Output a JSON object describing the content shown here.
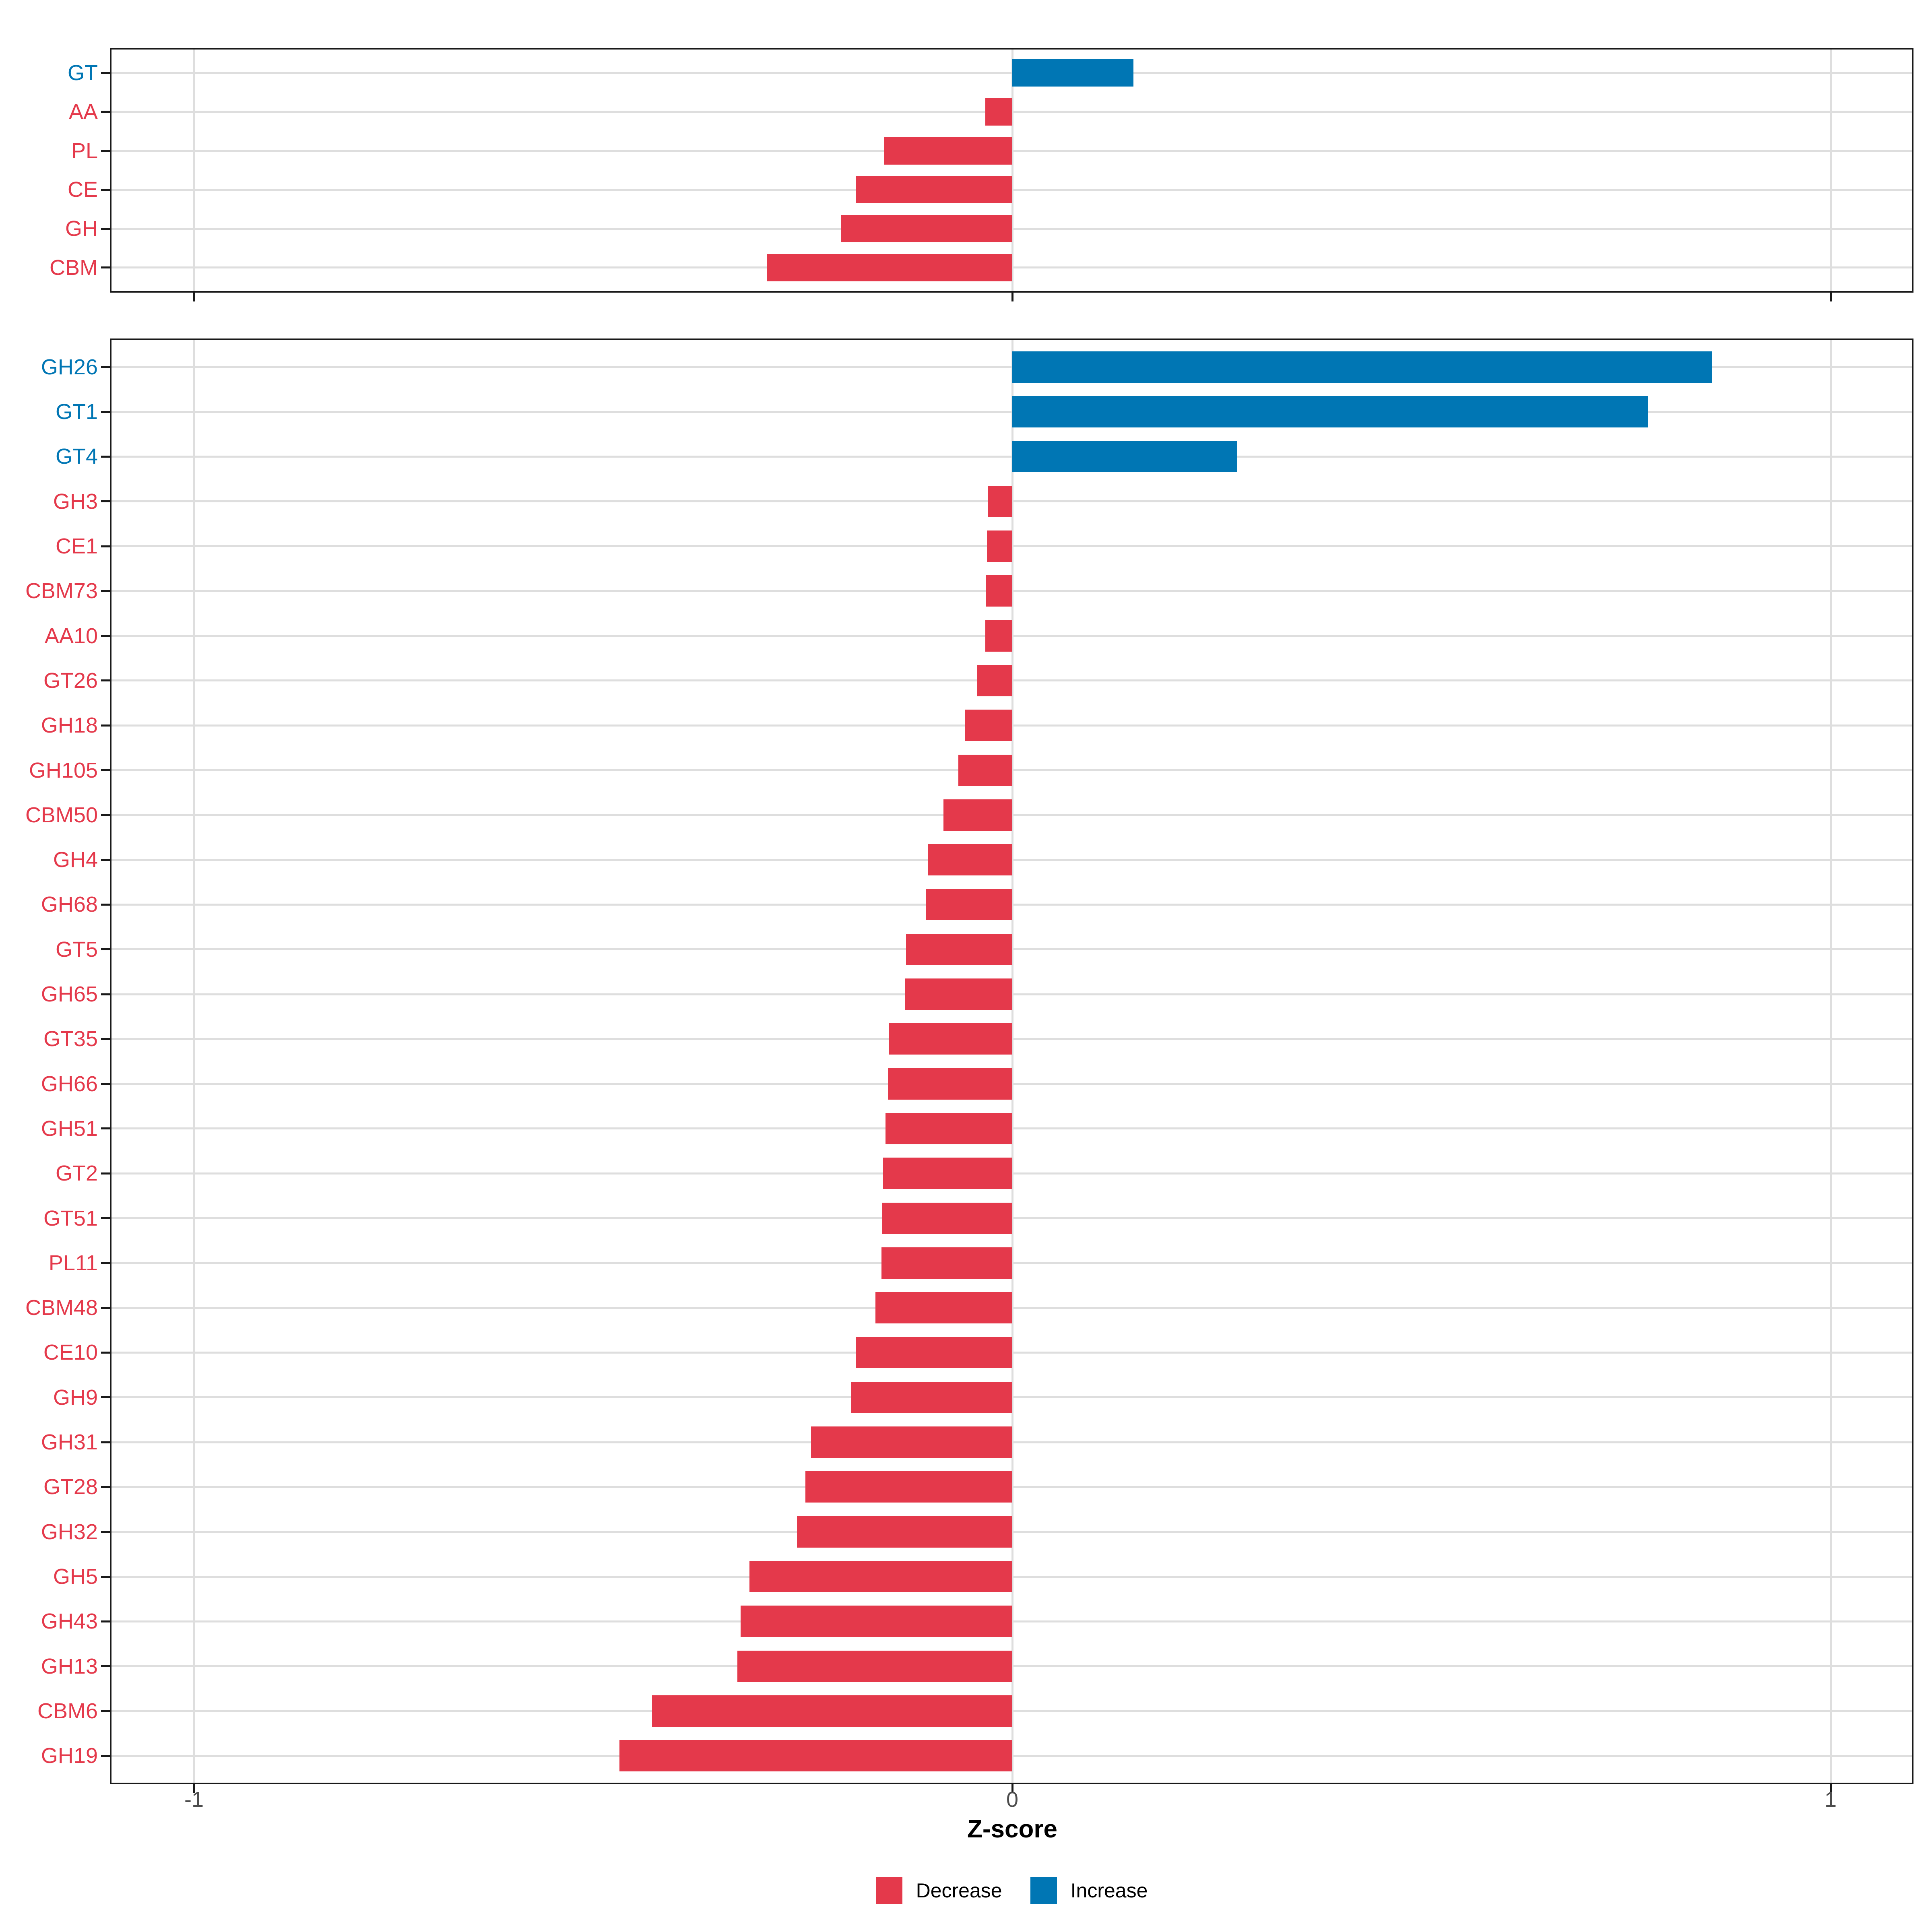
{
  "axis": {
    "title": "Z-score",
    "tick_labels": [
      "-1",
      "0",
      "1"
    ],
    "tick_values": [
      -1,
      0,
      1
    ]
  },
  "legend": {
    "items": [
      {
        "label": "Decrease",
        "color": "#E4394B"
      },
      {
        "label": "Increase",
        "color": "#0076B4"
      }
    ]
  },
  "colors": {
    "decrease": "#E4394B",
    "increase": "#0076B4",
    "grid": "#DEDEDE",
    "axis_text": "#4D4D4D",
    "panel_border": "#1A1A1A",
    "background": "#FFFFFF"
  },
  "chart_data": [
    {
      "type": "bar",
      "orientation": "horizontal",
      "panel": "cazyme-classes",
      "categories": [
        "GT",
        "AA",
        "PL",
        "CE",
        "GH",
        "CBM"
      ],
      "values": [
        0.148,
        -0.033,
        -0.157,
        -0.191,
        -0.209,
        -0.3
      ],
      "xlabel": "Z-score",
      "xlim": [
        -1.1,
        1.1
      ],
      "x_ticks": [
        -1,
        0,
        1
      ],
      "grid": true,
      "legend_position": "bottom"
    },
    {
      "type": "bar",
      "orientation": "horizontal",
      "panel": "cazyme-families",
      "categories": [
        "GH26",
        "GT1",
        "GT4",
        "GH3",
        "CE1",
        "CBM73",
        "AA10",
        "GT26",
        "GH18",
        "GH105",
        "CBM50",
        "GH4",
        "GH68",
        "GT5",
        "GH65",
        "GT35",
        "GH66",
        "GH51",
        "GT2",
        "GT51",
        "PL11",
        "CBM48",
        "CE10",
        "GH9",
        "GH31",
        "GT28",
        "GH32",
        "GH5",
        "GH43",
        "GH13",
        "CBM6",
        "GH19"
      ],
      "values": [
        0.855,
        0.777,
        0.275,
        -0.03,
        -0.031,
        -0.032,
        -0.033,
        -0.043,
        -0.058,
        -0.066,
        -0.084,
        -0.103,
        -0.106,
        -0.13,
        -0.131,
        -0.151,
        -0.152,
        -0.155,
        -0.158,
        -0.159,
        -0.16,
        -0.167,
        -0.191,
        -0.197,
        -0.246,
        -0.253,
        -0.263,
        -0.321,
        -0.332,
        -0.336,
        -0.44,
        -0.48
      ],
      "xlabel": "Z-score",
      "xlim": [
        -1.1,
        1.1
      ],
      "x_ticks": [
        -1,
        0,
        1
      ],
      "grid": true,
      "legend_position": "bottom"
    }
  ]
}
